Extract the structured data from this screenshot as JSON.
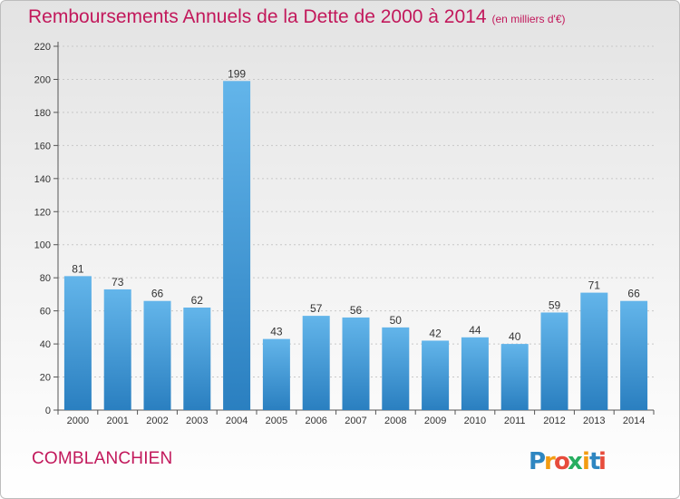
{
  "title": "Remboursements Annuels de la Dette de 2000 à 2014",
  "subtitle": "(en milliers d'€)",
  "commune": "COMBLANCHIEN",
  "logo": {
    "letters": [
      "P",
      "r",
      "o",
      "x",
      "i",
      "t",
      "i"
    ],
    "colors": [
      "#2e86c1",
      "#f39c12",
      "#e74c3c",
      "#27ae60",
      "#f39c12",
      "#2e86c1",
      "#e74c3c"
    ]
  },
  "colors": {
    "bar_top": "#63b5ea",
    "bar_bottom": "#2a7fc0",
    "title": "#c2185b"
  },
  "chart_data": {
    "type": "bar",
    "categories": [
      "2000",
      "2001",
      "2002",
      "2003",
      "2004",
      "2005",
      "2006",
      "2007",
      "2008",
      "2009",
      "2010",
      "2011",
      "2012",
      "2013",
      "2014"
    ],
    "values": [
      81,
      73,
      66,
      62,
      199,
      43,
      57,
      56,
      50,
      42,
      44,
      40,
      59,
      71,
      66
    ],
    "ylim": [
      0,
      220
    ],
    "yticks": [
      0,
      20,
      40,
      60,
      80,
      100,
      120,
      140,
      160,
      180,
      200,
      220
    ],
    "grid": true,
    "data_labels": true
  }
}
